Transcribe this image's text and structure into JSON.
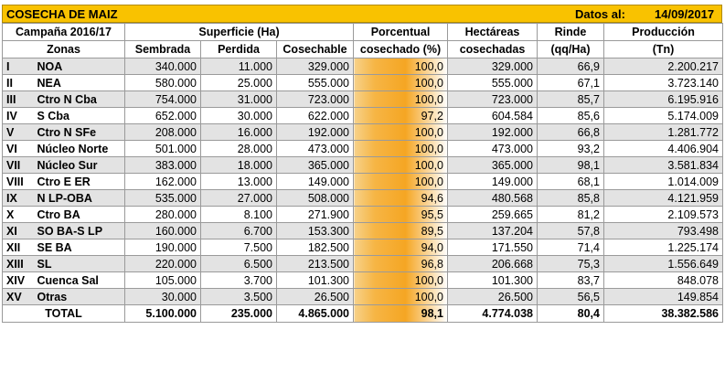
{
  "title": "COSECHA DE MAIZ",
  "date_label": "Datos al:",
  "date_value": "14/09/2017",
  "header": {
    "campaign": "Campaña 2016/17",
    "surface": "Superficie (Ha)",
    "zones": "Zonas",
    "sown": "Sembrada",
    "lost": "Perdida",
    "harvestable": "Cosechable",
    "pct_line1": "Porcentual",
    "pct_line2": "cosechado (%)",
    "ha_line1": "Hectáreas",
    "ha_line2": "cosechadas",
    "yield_line1": "Rinde",
    "yield_line2": "(qq/Ha)",
    "prod_line1": "Producción",
    "prod_line2": "(Tn)"
  },
  "rows": [
    {
      "rom": "I",
      "zone": "NOA",
      "sown": "340.000",
      "lost": "11.000",
      "harv": "329.000",
      "pct": "100,0",
      "ha": "329.000",
      "yield": "66,9",
      "prod": "2.200.217"
    },
    {
      "rom": "II",
      "zone": "NEA",
      "sown": "580.000",
      "lost": "25.000",
      "harv": "555.000",
      "pct": "100,0",
      "ha": "555.000",
      "yield": "67,1",
      "prod": "3.723.140"
    },
    {
      "rom": "III",
      "zone": "Ctro N Cba",
      "sown": "754.000",
      "lost": "31.000",
      "harv": "723.000",
      "pct": "100,0",
      "ha": "723.000",
      "yield": "85,7",
      "prod": "6.195.916"
    },
    {
      "rom": "IV",
      "zone": "S Cba",
      "sown": "652.000",
      "lost": "30.000",
      "harv": "622.000",
      "pct": "97,2",
      "ha": "604.584",
      "yield": "85,6",
      "prod": "5.174.009"
    },
    {
      "rom": "V",
      "zone": "Ctro N SFe",
      "sown": "208.000",
      "lost": "16.000",
      "harv": "192.000",
      "pct": "100,0",
      "ha": "192.000",
      "yield": "66,8",
      "prod": "1.281.772"
    },
    {
      "rom": "VI",
      "zone": "Núcleo Norte",
      "sown": "501.000",
      "lost": "28.000",
      "harv": "473.000",
      "pct": "100,0",
      "ha": "473.000",
      "yield": "93,2",
      "prod": "4.406.904"
    },
    {
      "rom": "VII",
      "zone": "Núcleo Sur",
      "sown": "383.000",
      "lost": "18.000",
      "harv": "365.000",
      "pct": "100,0",
      "ha": "365.000",
      "yield": "98,1",
      "prod": "3.581.834"
    },
    {
      "rom": "VIII",
      "zone": "Ctro E ER",
      "sown": "162.000",
      "lost": "13.000",
      "harv": "149.000",
      "pct": "100,0",
      "ha": "149.000",
      "yield": "68,1",
      "prod": "1.014.009"
    },
    {
      "rom": "IX",
      "zone": "N LP-OBA",
      "sown": "535.000",
      "lost": "27.000",
      "harv": "508.000",
      "pct": "94,6",
      "ha": "480.568",
      "yield": "85,8",
      "prod": "4.121.959"
    },
    {
      "rom": "X",
      "zone": "Ctro BA",
      "sown": "280.000",
      "lost": "8.100",
      "harv": "271.900",
      "pct": "95,5",
      "ha": "259.665",
      "yield": "81,2",
      "prod": "2.109.573"
    },
    {
      "rom": "XI",
      "zone": "SO BA-S LP",
      "sown": "160.000",
      "lost": "6.700",
      "harv": "153.300",
      "pct": "89,5",
      "ha": "137.204",
      "yield": "57,8",
      "prod": "793.498"
    },
    {
      "rom": "XII",
      "zone": "SE BA",
      "sown": "190.000",
      "lost": "7.500",
      "harv": "182.500",
      "pct": "94,0",
      "ha": "171.550",
      "yield": "71,4",
      "prod": "1.225.174"
    },
    {
      "rom": "XIII",
      "zone": "SL",
      "sown": "220.000",
      "lost": "6.500",
      "harv": "213.500",
      "pct": "96,8",
      "ha": "206.668",
      "yield": "75,3",
      "prod": "1.556.649"
    },
    {
      "rom": "XIV",
      "zone": "Cuenca Sal",
      "sown": "105.000",
      "lost": "3.700",
      "harv": "101.300",
      "pct": "100,0",
      "ha": "101.300",
      "yield": "83,7",
      "prod": "848.078"
    },
    {
      "rom": "XV",
      "zone": "Otras",
      "sown": "30.000",
      "lost": "3.500",
      "harv": "26.500",
      "pct": "100,0",
      "ha": "26.500",
      "yield": "56,5",
      "prod": "149.854"
    }
  ],
  "total": {
    "label": "TOTAL",
    "sown": "5.100.000",
    "lost": "235.000",
    "harv": "4.865.000",
    "pct": "98,1",
    "ha": "4.774.038",
    "yield": "80,4",
    "prod": "38.382.586"
  }
}
